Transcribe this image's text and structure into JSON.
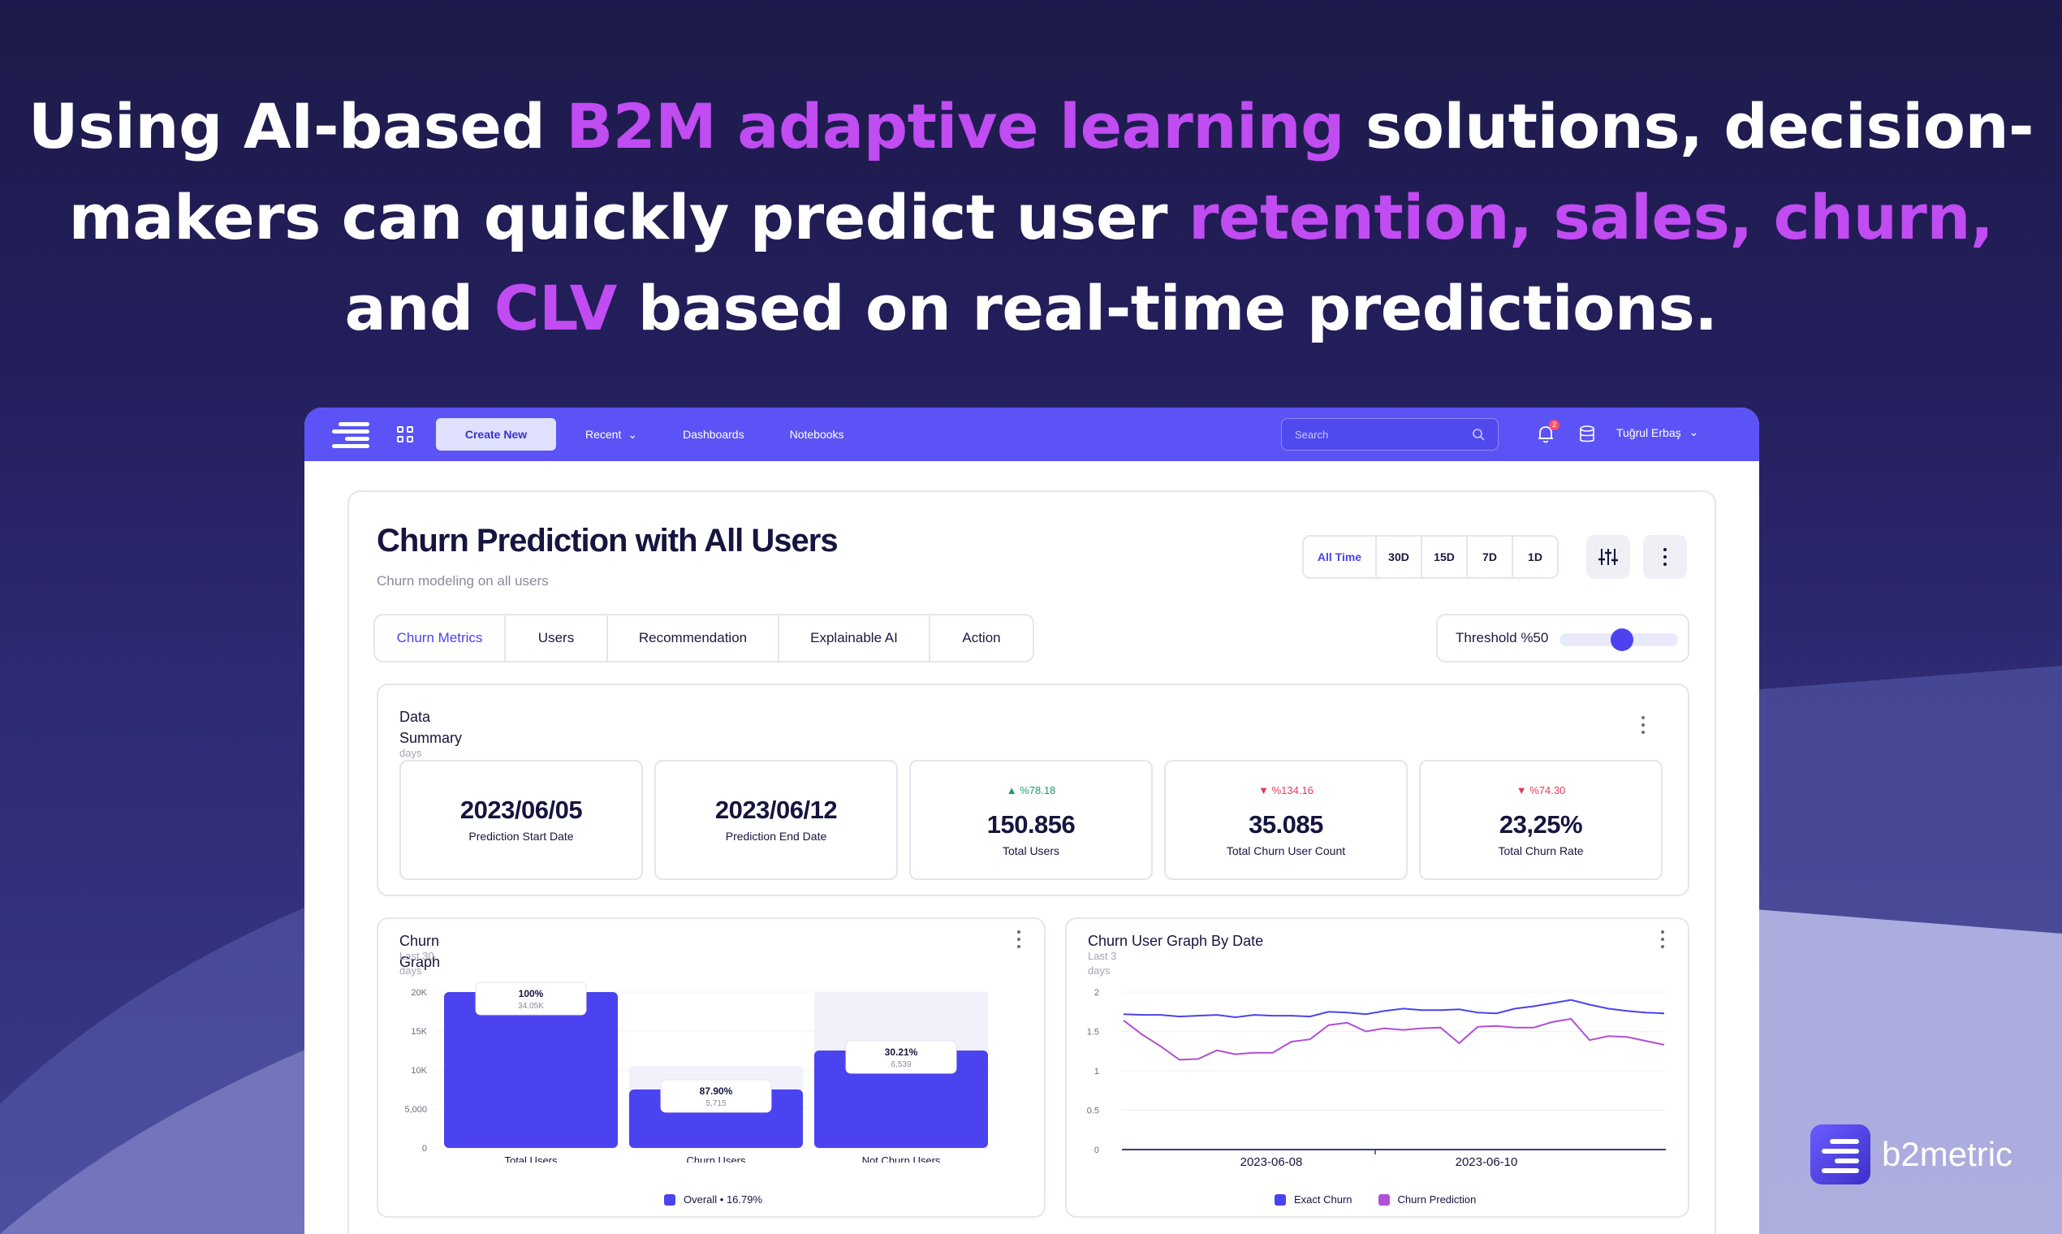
{
  "headline": {
    "line1_a": "Using AI-based ",
    "line1_hl": "B2M adaptive learning",
    "line1_b": " solutions, decision-",
    "line2_a": "makers can quickly predict user ",
    "line2_hl": "retention, sales, churn,",
    "line3_a": "and ",
    "line3_hl": "CLV",
    "line3_b": " based on real-time predictions."
  },
  "topbar": {
    "create_label": "Create New",
    "nav": [
      "Recent",
      "Dashboards",
      "Notebooks"
    ],
    "search_placeholder": "Search",
    "notifications": "2",
    "user_name": "Tuğrul Erbaş"
  },
  "page": {
    "title": "Churn Prediction with All Users",
    "subtitle": "Churn modeling on all users",
    "ranges": [
      "All Time",
      "30D",
      "15D",
      "7D",
      "1D"
    ],
    "tabs": [
      "Churn Metrics",
      "Users",
      "Recommendation",
      "Explainable AI",
      "Action"
    ],
    "threshold_label": "Threshold %50",
    "threshold_value": 0.5
  },
  "summary": {
    "title": "Data Summary",
    "ghost": "days",
    "cards": [
      {
        "value": "2023/06/05",
        "label": "Prediction Start Date"
      },
      {
        "value": "2023/06/12",
        "label": "Prediction End Date"
      },
      {
        "change": "%78.18",
        "value": "150.856",
        "label": "Total Users"
      },
      {
        "change": "%134.16",
        "value": "35.085",
        "label": "Total Churn User Count"
      },
      {
        "change": "%74.30",
        "value": "23,25%",
        "label": "Total Churn Rate"
      }
    ]
  },
  "churn_graph": {
    "title": "Churn Graph",
    "ghost_top": "Last 30",
    "ghost": "days",
    "legend": "Overall • 16.79%",
    "bar_labels": [
      {
        "pct": "100%",
        "sub": "34.05K"
      },
      {
        "pct": "87.90%",
        "sub": "5,715"
      },
      {
        "pct": "30.21%",
        "sub": "6,539"
      }
    ]
  },
  "line_graph": {
    "title": "Churn User Graph By Date",
    "ghost_top": "Last 3",
    "ghost": "days",
    "legend_exact": "Exact Churn",
    "legend_pred": "Churn Prediction"
  },
  "brand": {
    "name": "b2metric"
  },
  "colors": {
    "accent": "#5b53f5",
    "highlight": "#c04cf2",
    "prediction": "#b04fd6"
  },
  "chart_data": [
    {
      "type": "bar",
      "categories": [
        "Total Users",
        "Churn Users",
        "Not Churn Users"
      ],
      "values": [
        20000,
        7500,
        12500
      ],
      "background_values": [
        0,
        10500,
        20000
      ],
      "yticks": [
        "20K",
        "15K",
        "10K",
        "5,000",
        "0"
      ],
      "ylim": [
        0,
        20000
      ]
    },
    {
      "type": "line",
      "x": [
        0,
        1,
        2,
        3,
        4,
        5,
        6,
        7,
        8,
        9,
        10,
        11,
        12,
        13,
        14,
        15,
        16,
        17,
        18,
        19,
        20,
        21,
        22,
        23,
        24,
        25,
        26,
        27,
        28,
        29
      ],
      "xticks": [
        "2023-06-08",
        "2023-06-10"
      ],
      "yticks": [
        "2",
        "1.5",
        "1",
        "0.5",
        "0"
      ],
      "ylim": [
        0,
        2
      ],
      "series": [
        {
          "name": "Exact Churn",
          "color": "#4b43ef",
          "values": [
            1.72,
            1.71,
            1.71,
            1.69,
            1.7,
            1.71,
            1.68,
            1.71,
            1.7,
            1.7,
            1.69,
            1.75,
            1.74,
            1.72,
            1.76,
            1.79,
            1.77,
            1.77,
            1.78,
            1.74,
            1.73,
            1.79,
            1.82,
            1.86,
            1.9,
            1.84,
            1.79,
            1.76,
            1.74,
            1.73
          ]
        },
        {
          "name": "Churn Prediction",
          "color": "#b04fd6",
          "values": [
            1.64,
            1.46,
            1.31,
            1.14,
            1.15,
            1.26,
            1.21,
            1.23,
            1.23,
            1.37,
            1.4,
            1.58,
            1.61,
            1.5,
            1.54,
            1.52,
            1.54,
            1.55,
            1.35,
            1.56,
            1.57,
            1.55,
            1.55,
            1.62,
            1.66,
            1.39,
            1.44,
            1.43,
            1.38,
            1.33
          ]
        }
      ]
    }
  ]
}
